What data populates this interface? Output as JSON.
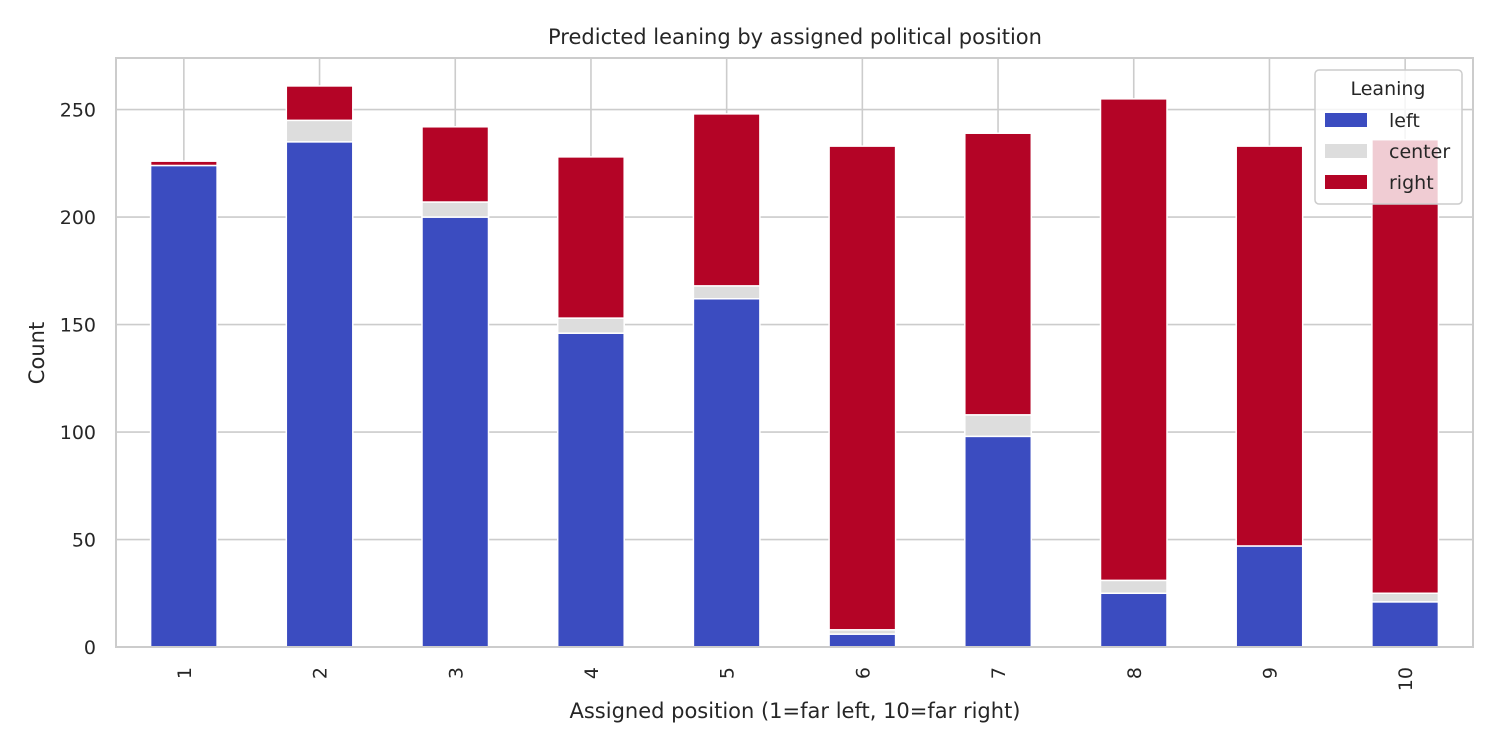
{
  "chart_data": {
    "type": "bar",
    "stacked": true,
    "title": "Predicted leaning by assigned political position",
    "xlabel": "Assigned position (1=far left, 10=far right)",
    "ylabel": "Count",
    "categories": [
      "1",
      "2",
      "3",
      "4",
      "5",
      "6",
      "7",
      "8",
      "9",
      "10"
    ],
    "ylim": [
      0,
      274
    ],
    "yticks": [
      0,
      50,
      100,
      150,
      200,
      250
    ],
    "grid": true,
    "legend": {
      "title": "Leaning",
      "placement": "top-right"
    },
    "series": [
      {
        "name": "left",
        "color": "#3b4cc0",
        "values": [
          224,
          235,
          200,
          146,
          162,
          6,
          98,
          25,
          47,
          21
        ]
      },
      {
        "name": "center",
        "color": "#dddddd",
        "values": [
          0,
          10,
          7,
          7,
          6,
          2,
          10,
          6,
          0,
          4
        ]
      },
      {
        "name": "right",
        "color": "#b40426",
        "values": [
          2,
          16,
          35,
          75,
          80,
          225,
          131,
          224,
          186,
          211
        ]
      }
    ]
  }
}
